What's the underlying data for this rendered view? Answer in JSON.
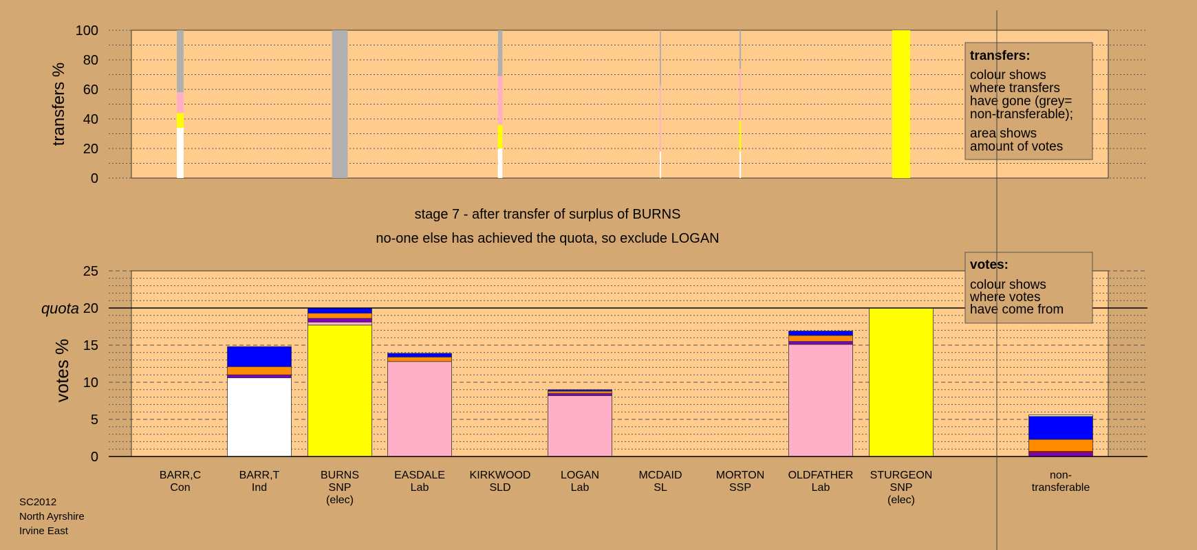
{
  "colors": {
    "page_bg": "#d4a872",
    "plot_bg": "#ffcc8e",
    "legend_bg": "#d4a872",
    "grey": "#b0b0b0",
    "pink": "#ffb0c8",
    "yellow": "#ffff00",
    "white": "#ffffff",
    "blue": "#0000ff",
    "orange": "#ff8c00",
    "purple": "#8000c0",
    "red": "#e00000"
  },
  "titles": {
    "line1": "stage 7 - after transfer of surplus of BURNS",
    "line2": "no-one else has achieved the quota, so exclude LOGAN"
  },
  "legend_transfers": {
    "title": "transfers:",
    "para1": [
      "colour shows",
      "where transfers",
      "have gone (grey=",
      "non-transferable);"
    ],
    "para2": [
      "area shows",
      "amount of votes"
    ]
  },
  "legend_votes": {
    "title": "votes:",
    "para1": [
      "colour shows",
      "where votes",
      "have come from"
    ]
  },
  "footer": [
    "SC2012",
    "North Ayrshire",
    "Irvine East"
  ],
  "chart_data": [
    {
      "type": "bar",
      "stacked": true,
      "ylabel": "transfers %",
      "ylim": [
        0,
        100
      ],
      "yticks": [
        0,
        20,
        40,
        60,
        80,
        100
      ],
      "categories": [
        "BARR,C",
        "BARR,T",
        "BURNS",
        "EASDALE",
        "KIRKWOOD",
        "LOGAN",
        "MCDAID",
        "MORTON",
        "OLDFATHER",
        "STURGEON"
      ],
      "bar_width_votes_share": [
        0.3,
        0,
        0.7,
        0,
        0.2,
        0,
        0.02,
        0.07,
        0,
        0.8
      ],
      "series": [
        {
          "color": "white",
          "values": [
            34,
            0,
            0,
            0,
            20,
            0,
            18,
            18,
            0,
            0
          ]
        },
        {
          "color": "yellow",
          "values": [
            10,
            0,
            0,
            0,
            16,
            0,
            0,
            21,
            0,
            100
          ]
        },
        {
          "color": "pink",
          "values": [
            14,
            0,
            0,
            0,
            33,
            0,
            45,
            35,
            0,
            0
          ]
        },
        {
          "color": "grey",
          "values": [
            42,
            0,
            100,
            0,
            31,
            0,
            37,
            26,
            0,
            0
          ]
        }
      ]
    },
    {
      "type": "bar",
      "stacked": true,
      "ylabel": "votes %",
      "ylim": [
        0,
        25
      ],
      "yticks": [
        0,
        5,
        10,
        15,
        20,
        25
      ],
      "quota": 20,
      "quota_label": "quota",
      "categories": [
        {
          "name": "BARR,C",
          "party": "Con",
          "note": ""
        },
        {
          "name": "BARR,T",
          "party": "Ind",
          "note": ""
        },
        {
          "name": "BURNS",
          "party": "SNP",
          "note": "(elec)"
        },
        {
          "name": "EASDALE",
          "party": "Lab",
          "note": ""
        },
        {
          "name": "KIRKWOOD",
          "party": "SLD",
          "note": ""
        },
        {
          "name": "LOGAN",
          "party": "Lab",
          "note": ""
        },
        {
          "name": "MCDAID",
          "party": "SL",
          "note": ""
        },
        {
          "name": "MORTON",
          "party": "SSP",
          "note": ""
        },
        {
          "name": "OLDFATHER",
          "party": "Lab",
          "note": ""
        },
        {
          "name": "STURGEON",
          "party": "SNP",
          "note": "(elec)"
        },
        {
          "name": "non-",
          "party": "transferable",
          "note": ""
        }
      ],
      "stacks": [
        [],
        [
          {
            "color": "white",
            "value": 10.6
          },
          {
            "color": "purple",
            "value": 0.4
          },
          {
            "color": "orange",
            "value": 1.1
          },
          {
            "color": "blue",
            "value": 2.7
          }
        ],
        [
          {
            "color": "yellow",
            "value": 17.7
          },
          {
            "color": "pink",
            "value": 0.4
          },
          {
            "color": "purple",
            "value": 0.5
          },
          {
            "color": "orange",
            "value": 0.7
          },
          {
            "color": "blue",
            "value": 0.7
          }
        ],
        [
          {
            "color": "pink",
            "value": 12.8
          },
          {
            "color": "orange",
            "value": 0.6
          },
          {
            "color": "blue",
            "value": 0.5
          }
        ],
        [],
        [
          {
            "color": "pink",
            "value": 8.2
          },
          {
            "color": "purple",
            "value": 0.3
          },
          {
            "color": "orange",
            "value": 0.3
          },
          {
            "color": "blue",
            "value": 0.2
          }
        ],
        [],
        [],
        [
          {
            "color": "pink",
            "value": 15.1
          },
          {
            "color": "purple",
            "value": 0.4
          },
          {
            "color": "orange",
            "value": 0.8
          },
          {
            "color": "blue",
            "value": 0.6
          }
        ],
        [
          {
            "color": "yellow",
            "value": 20.0
          }
        ],
        [
          {
            "color": "purple",
            "value": 0.5
          },
          {
            "color": "red",
            "value": 0.2
          },
          {
            "color": "orange",
            "value": 1.6
          },
          {
            "color": "blue",
            "value": 3.1
          },
          {
            "color": "white",
            "value": 0.2
          }
        ]
      ]
    }
  ]
}
